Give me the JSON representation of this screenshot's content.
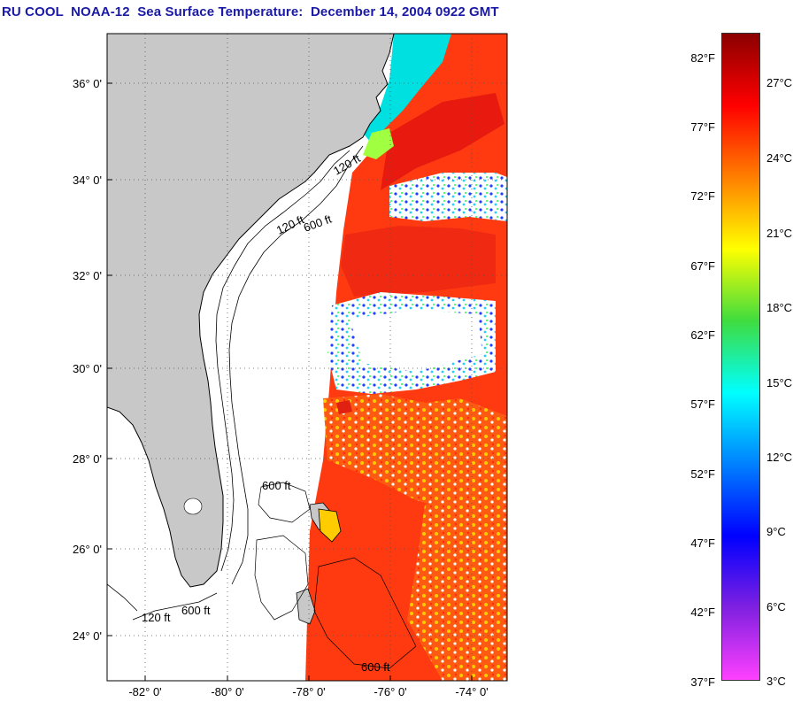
{
  "title": "RU COOL  NOAA-12  Sea Surface Temperature:  December 14, 2004 0922 GMT",
  "map": {
    "lat_labels": [
      "36° 0'",
      "34° 0'",
      "32° 0'",
      "30° 0'",
      "28° 0'",
      "26° 0'",
      "24° 0'"
    ],
    "lon_labels": [
      "-82° 0'",
      "-80° 0'",
      "-78° 0'",
      "-76° 0'",
      "-74° 0'"
    ],
    "contour_labels": [
      "120 ft",
      "600 ft"
    ],
    "colors": {
      "land": "#c8c8c8",
      "water_nodata": "#ffffff",
      "warm": "#ff3a10"
    }
  },
  "colorbar": {
    "fahrenheit_labels": [
      "82°F",
      "77°F",
      "72°F",
      "67°F",
      "62°F",
      "57°F",
      "52°F",
      "47°F",
      "42°F",
      "37°F"
    ],
    "celsius_labels": [
      "27°C",
      "24°C",
      "21°C",
      "18°C",
      "15°C",
      "12°C",
      "9°C",
      "6°C",
      "3°C"
    ],
    "gradient": [
      "#8b0000",
      "#ff0000",
      "#ff7f00",
      "#ffff00",
      "#3fdc3f",
      "#00ffff",
      "#0080ff",
      "#0000ff",
      "#8020e0",
      "#ff40ff"
    ]
  }
}
